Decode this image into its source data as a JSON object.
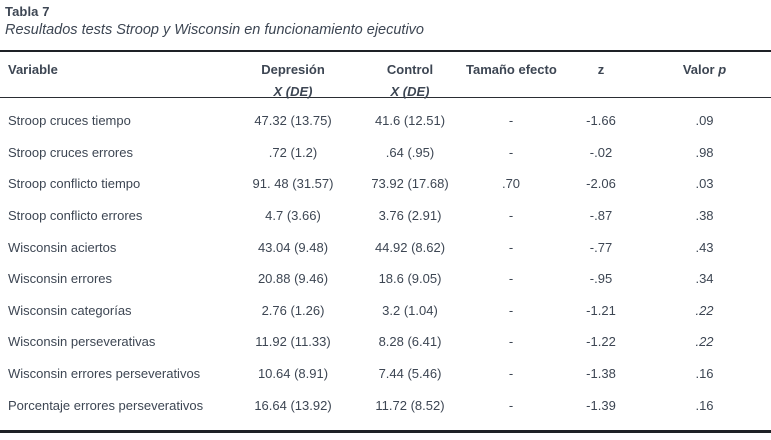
{
  "page": {
    "title": "Tabla 7",
    "subtitle": "Resultados tests Stroop y Wisconsin en funcionamiento ejecutivo"
  },
  "table": {
    "keys": [
      "variable",
      "depresion",
      "control",
      "tamano_efecto",
      "z",
      "valor_p"
    ],
    "columns": [
      {
        "id": "variable",
        "label": "Variable",
        "italic": "",
        "sub": ""
      },
      {
        "id": "depresion",
        "label": "Depresión",
        "italic": "",
        "sub": "X (DE)"
      },
      {
        "id": "control",
        "label": "Control",
        "italic": "",
        "sub": "X (DE)"
      },
      {
        "id": "tamano-efecto",
        "label": "Tamaño efecto",
        "italic": "",
        "sub": ""
      },
      {
        "id": "z",
        "label": "z",
        "italic": "",
        "sub": ""
      },
      {
        "id": "valor-p",
        "label": "Valor ",
        "italic": "p",
        "sub": ""
      }
    ],
    "rows": [
      {
        "variable": "Stroop cruces tiempo",
        "depresion": "47.32 (13.75)",
        "control": "41.6 (12.51)",
        "tamano_efecto": "-",
        "z": "-1.66",
        "valor_p": ".09"
      },
      {
        "variable": "Stroop cruces errores",
        "depresion": ".72 (1.2)",
        "control": ".64 (.95)",
        "tamano_efecto": "-",
        "z": "-.02",
        "valor_p": ".98"
      },
      {
        "variable": "Stroop conflicto tiempo",
        "depresion": "91. 48 (31.57)",
        "control": "73.92 (17.68)",
        "tamano_efecto": ".70",
        "z": "-2.06",
        "valor_p": ".03"
      },
      {
        "variable": "Stroop conflicto errores",
        "depresion": "4.7 (3.66)",
        "control": "3.76 (2.91)",
        "tamano_efecto": "-",
        "z": "-.87",
        "valor_p": ".38"
      },
      {
        "variable": "Wisconsin aciertos",
        "depresion": "43.04 (9.48)",
        "control": "44.92 (8.62)",
        "tamano_efecto": "-",
        "z": "-.77",
        "valor_p": ".43"
      },
      {
        "variable": "Wisconsin errores",
        "depresion": "20.88 (9.46)",
        "control": "18.6 (9.05)",
        "tamano_efecto": "-",
        "z": "-.95",
        "valor_p": ".34"
      },
      {
        "variable": "Wisconsin categorías",
        "depresion": "2.76 (1.26)",
        "control": "3.2 (1.04)",
        "tamano_efecto": "-",
        "z": "-1.21",
        "valor_p": ".22",
        "valor_p_italic": true
      },
      {
        "variable": "Wisconsin perseverativas",
        "depresion": "11.92 (11.33)",
        "control": "8.28 (6.41)",
        "tamano_efecto": "-",
        "z": "-1.22",
        "valor_p": ".22",
        "valor_p_italic": true
      },
      {
        "variable": "Wisconsin errores perseverativos",
        "depresion": "10.64 (8.91)",
        "control": "7.44 (5.46)",
        "tamano_efecto": "-",
        "z": "-1.38",
        "valor_p": ".16"
      },
      {
        "variable": "Porcentaje errores perseverativos",
        "depresion": "16.64 (13.92)",
        "control": "11.72 (8.52)",
        "tamano_efecto": "-",
        "z": "-1.39",
        "valor_p": ".16"
      }
    ]
  },
  "colors": {
    "text": "#3d4653",
    "rule": "#1e2126",
    "background": "#ffffff"
  }
}
